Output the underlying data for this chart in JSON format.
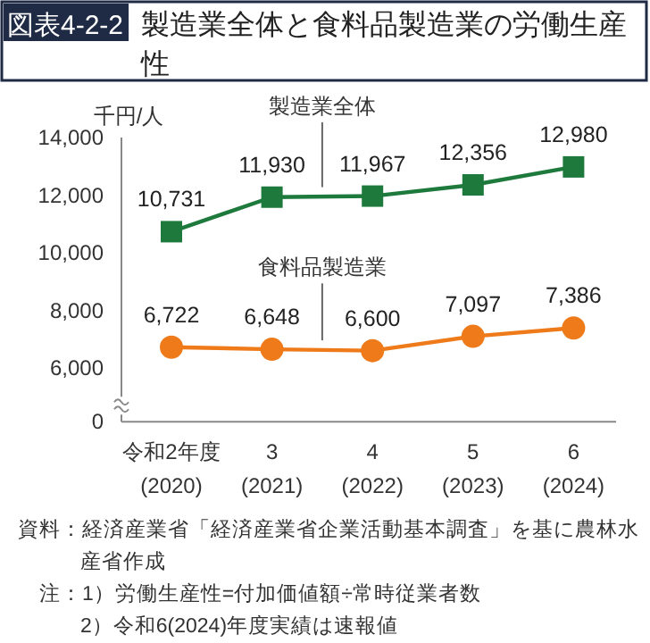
{
  "chart_data": {
    "type": "line",
    "title": "図表4-2-2",
    "subtitle": "製造業全体と食料品製造業の労働生産性",
    "ylabel": "千円/人",
    "categories": [
      "令和2年度\n(2020)",
      "3\n(2021)",
      "4\n(2022)",
      "5\n(2023)",
      "6\n(2024)"
    ],
    "series": [
      {
        "name": "製造業全体",
        "color": "#1e7a3c",
        "marker": "square",
        "values": [
          10731,
          11930,
          11967,
          12356,
          12980
        ],
        "value_labels": [
          "10,731",
          "11,930",
          "11,967",
          "12,356",
          "12,980"
        ]
      },
      {
        "name": "食料品製造業",
        "color": "#ee7a1a",
        "marker": "circle",
        "values": [
          6722,
          6648,
          6600,
          7097,
          7386
        ],
        "value_labels": [
          "6,722",
          "6,648",
          "6,600",
          "7,097",
          "7,386"
        ]
      }
    ],
    "ylim": [
      5000,
      14000
    ],
    "yticks": [
      {
        "value": 6000,
        "label": "6,000"
      },
      {
        "value": 8000,
        "label": "8,000"
      },
      {
        "value": 10000,
        "label": "10,000"
      },
      {
        "value": 12000,
        "label": "12,000"
      },
      {
        "value": 14000,
        "label": "14,000"
      }
    ],
    "grid": false,
    "annotations": [
      "0",
      "資料：経済産業省「経済産業省企業活動基本調査」を基に農林水産省作成",
      "注：1）労働生産性=付加価値額÷常時従業者数",
      "2）令和6(2024)年度実績は速報値"
    ]
  }
}
